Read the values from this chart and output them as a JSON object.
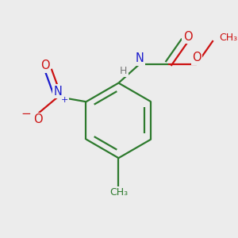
{
  "bg_color": "#ececec",
  "bond_color": "#2d7a2d",
  "N_color": "#1a1acc",
  "O_color": "#cc1111",
  "H_color": "#777777",
  "lw": 1.6,
  "dbo": 0.12,
  "figsize": [
    3.0,
    3.0
  ],
  "dpi": 100,
  "xlim": [
    0,
    300
  ],
  "ylim": [
    0,
    300
  ]
}
